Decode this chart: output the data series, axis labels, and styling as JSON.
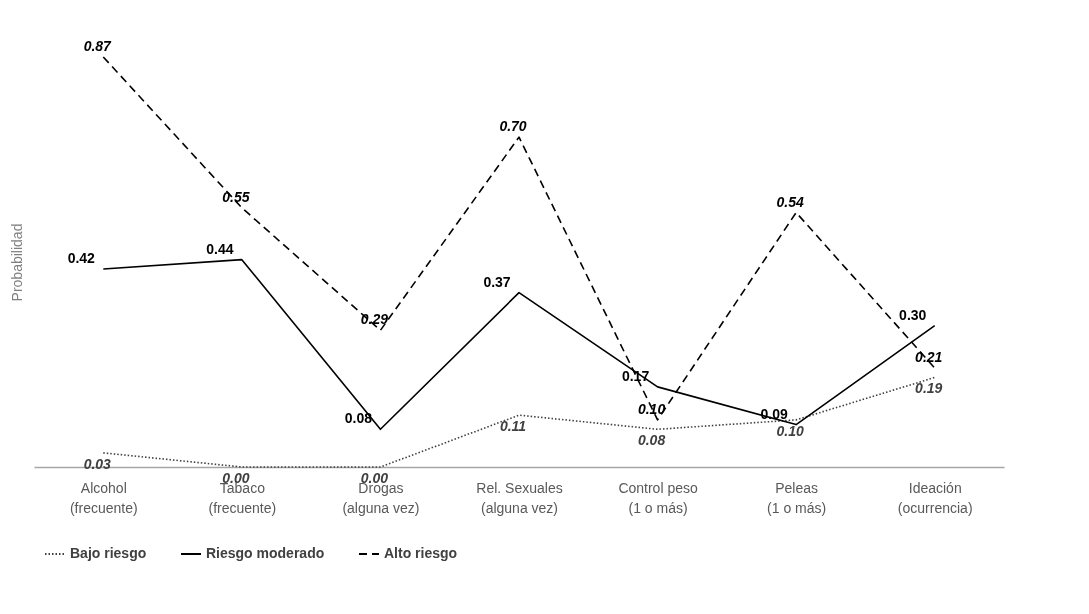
{
  "chart_data": {
    "type": "line",
    "ylabel": "Probabilidad",
    "categories": [
      "Alcohol (frecuente)",
      "Tabaco (frecuente)",
      "Drogas (alguna vez)",
      "Rel. Sexuales (alguna vez)",
      "Control peso (1 o más)",
      "Peleas (1 o más)",
      "Ideación (ocurrencia)"
    ],
    "series": [
      {
        "name": "Bajo riesgo",
        "color": "#404040",
        "line_style": "dotted",
        "values": [
          0.03,
          0.0,
          0.0,
          0.11,
          0.08,
          0.1,
          0.19
        ],
        "value_labels": [
          "0.03",
          "0.00",
          "0.00",
          "0.11",
          "0.08",
          "0.10",
          "0.19"
        ]
      },
      {
        "name": "Riesgo moderado",
        "color": "#000000",
        "line_style": "solid",
        "values": [
          0.42,
          0.44,
          0.08,
          0.37,
          0.17,
          0.09,
          0.3
        ],
        "value_labels": [
          "0.42",
          "0.44",
          "0.08",
          "0.37",
          "0.17",
          "0.09",
          "0.30"
        ]
      },
      {
        "name": "Alto riesgo",
        "color": "#000000",
        "line_style": "dashed",
        "values": [
          0.87,
          0.55,
          0.29,
          0.7,
          0.1,
          0.54,
          0.21
        ],
        "value_labels": [
          "0.87",
          "0.55",
          "0.29",
          "0.70",
          "0.10",
          "0.54",
          "0.21"
        ]
      }
    ],
    "tick_labels": "x",
    "legend": "bottom",
    "grid": false,
    "marker": "none"
  }
}
